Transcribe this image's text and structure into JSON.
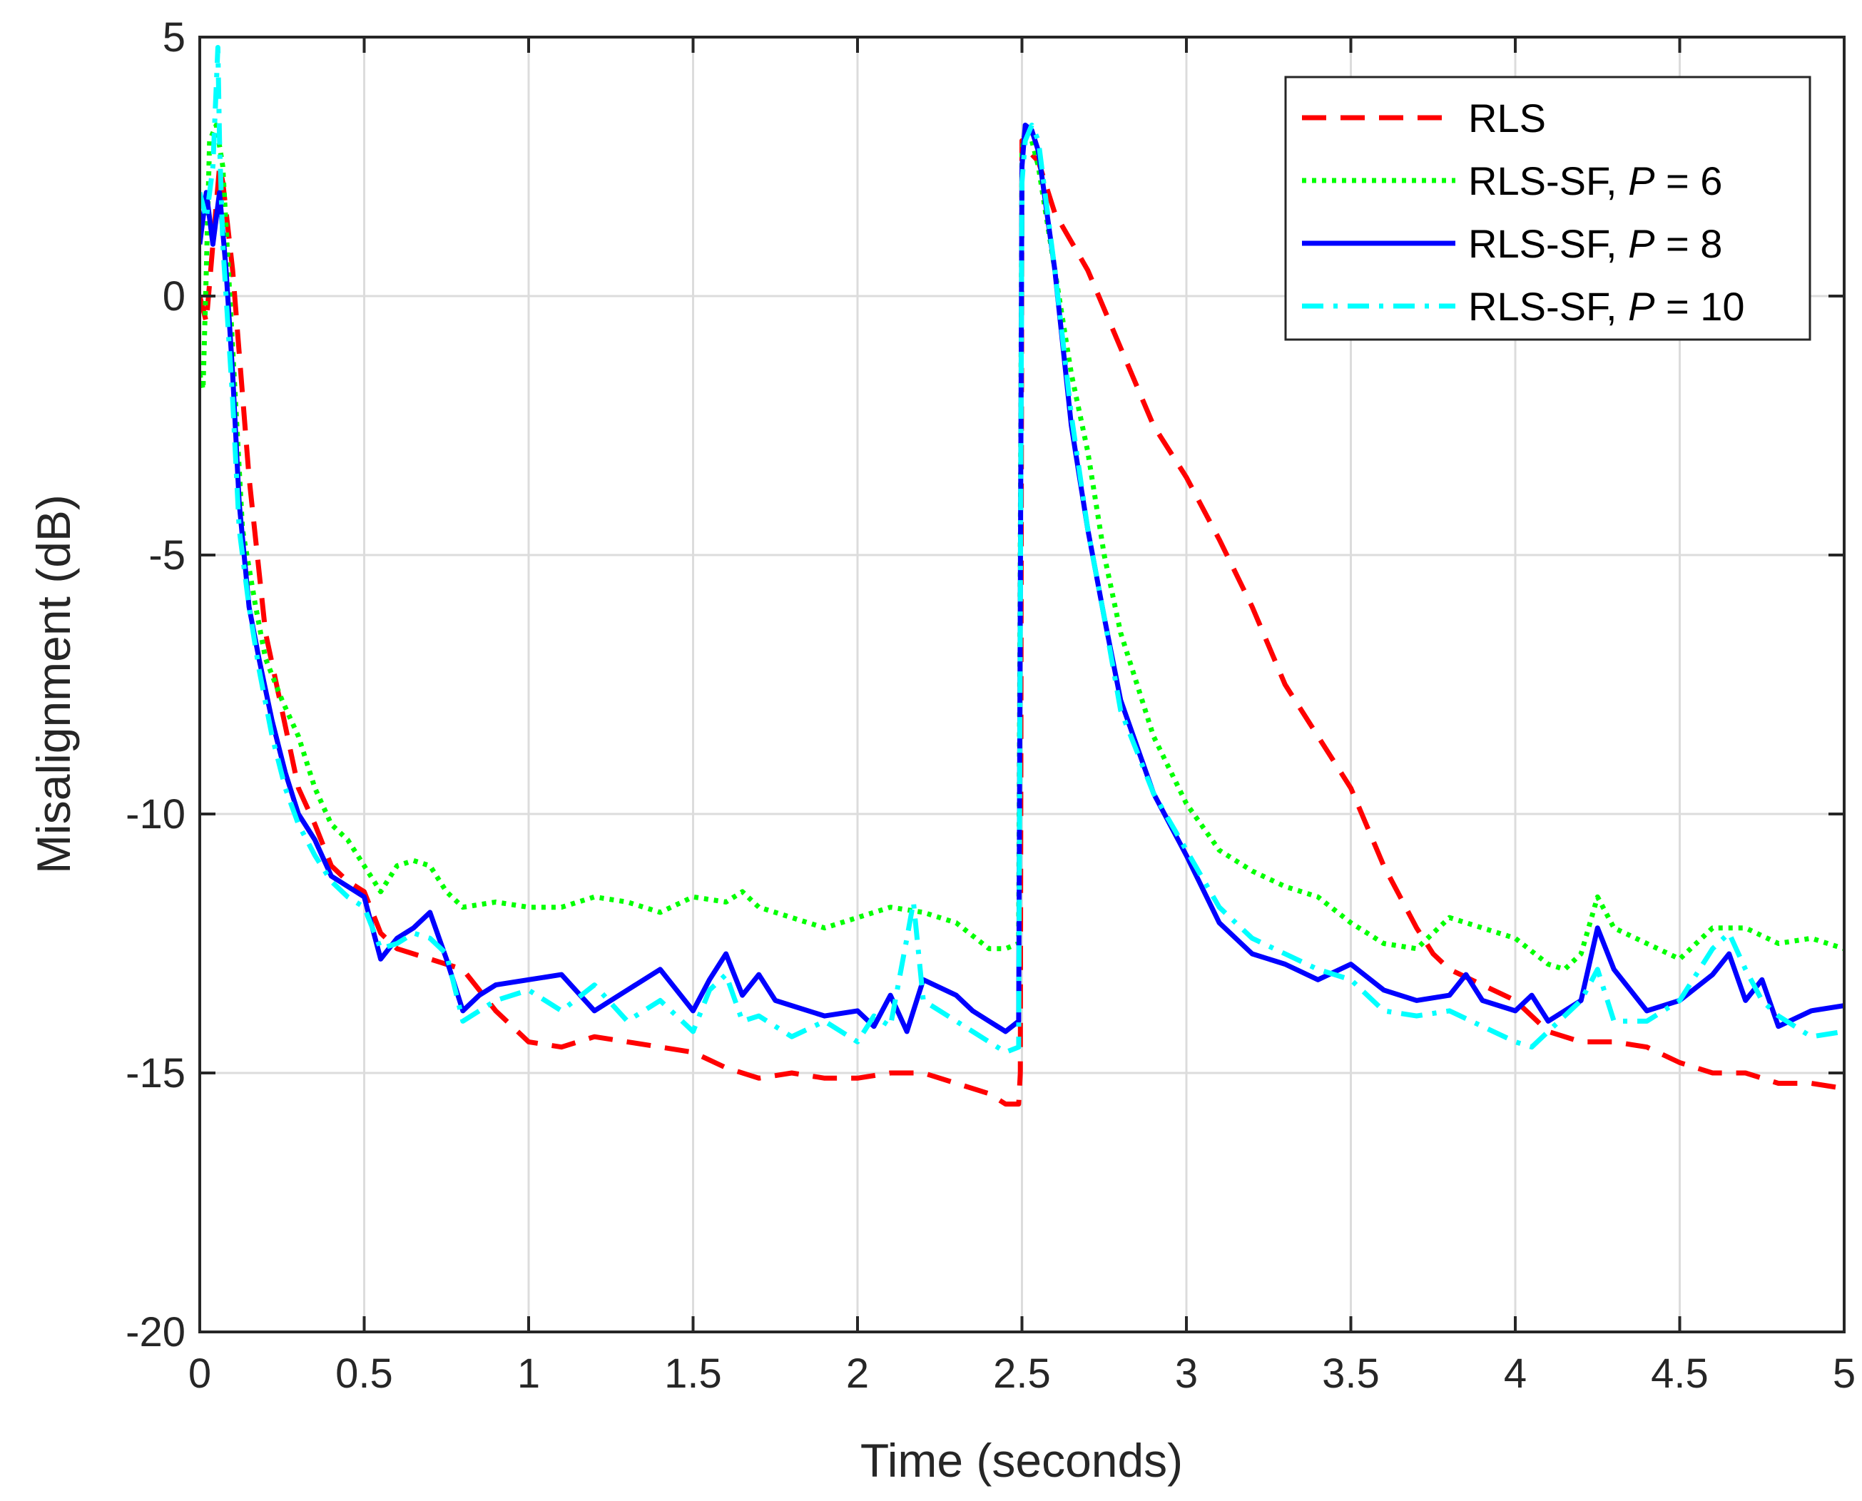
{
  "chart_data": {
    "type": "line",
    "title": "",
    "xlabel": "Time (seconds)",
    "ylabel": "Misalignment (dB)",
    "xlim": [
      0,
      5
    ],
    "ylim": [
      -20,
      5
    ],
    "xticks": [
      0,
      0.5,
      1,
      1.5,
      2,
      2.5,
      3,
      3.5,
      4,
      4.5,
      5
    ],
    "xtick_labels": [
      "0",
      "0.5",
      "1",
      "1.5",
      "2",
      "2.5",
      "3",
      "3.5",
      "4",
      "4.5",
      "5"
    ],
    "yticks": [
      5,
      0,
      -5,
      -10,
      -15,
      -20
    ],
    "ytick_labels": [
      "5",
      "0",
      "-5",
      "-10",
      "-15",
      "-20"
    ],
    "grid": true,
    "legend_position": "top-right",
    "series": [
      {
        "name": "RLS",
        "legend_main": "RLS",
        "legend_var": "",
        "legend_tail": "",
        "color": "#ff0000",
        "style": "dashed",
        "x": [
          0,
          0.02,
          0.04,
          0.06,
          0.07,
          0.1,
          0.15,
          0.2,
          0.25,
          0.3,
          0.35,
          0.4,
          0.45,
          0.5,
          0.55,
          0.6,
          0.7,
          0.8,
          0.9,
          1.0,
          1.1,
          1.2,
          1.3,
          1.4,
          1.5,
          1.6,
          1.7,
          1.8,
          1.9,
          2.0,
          2.1,
          2.2,
          2.3,
          2.4,
          2.45,
          2.49,
          2.495,
          2.5,
          2.505,
          2.52,
          2.55,
          2.6,
          2.7,
          2.8,
          2.9,
          3.0,
          3.1,
          3.2,
          3.3,
          3.4,
          3.5,
          3.6,
          3.7,
          3.75,
          3.8,
          3.9,
          4.0,
          4.1,
          4.2,
          4.3,
          4.4,
          4.5,
          4.6,
          4.7,
          4.8,
          4.9,
          5.0
        ],
        "y": [
          0,
          -0.5,
          1.0,
          2.5,
          2.2,
          0.5,
          -3.5,
          -6.5,
          -8.0,
          -9.5,
          -10.2,
          -11.0,
          -11.3,
          -11.5,
          -12.3,
          -12.6,
          -12.8,
          -13.0,
          -13.8,
          -14.4,
          -14.5,
          -14.3,
          -14.4,
          -14.5,
          -14.6,
          -14.9,
          -15.1,
          -15.0,
          -15.1,
          -15.1,
          -15.0,
          -15.0,
          -15.2,
          -15.4,
          -15.6,
          -15.6,
          -15.0,
          3.0,
          3.0,
          2.8,
          2.6,
          1.6,
          0.5,
          -1.0,
          -2.5,
          -3.5,
          -4.7,
          -6.0,
          -7.5,
          -8.5,
          -9.5,
          -11.0,
          -12.2,
          -12.7,
          -13.0,
          -13.3,
          -13.6,
          -14.2,
          -14.4,
          -14.4,
          -14.5,
          -14.8,
          -15.0,
          -15.0,
          -15.2,
          -15.2,
          -15.3
        ]
      },
      {
        "name": "RLS-SF, P = 6",
        "legend_main": "RLS-SF, ",
        "legend_var": "P",
        "legend_tail": " = 6",
        "color": "#00ff00",
        "style": "dotted",
        "x": [
          0,
          0.01,
          0.02,
          0.03,
          0.05,
          0.07,
          0.1,
          0.13,
          0.17,
          0.2,
          0.25,
          0.3,
          0.35,
          0.4,
          0.45,
          0.5,
          0.55,
          0.6,
          0.65,
          0.7,
          0.75,
          0.8,
          0.9,
          1.0,
          1.1,
          1.2,
          1.3,
          1.4,
          1.5,
          1.6,
          1.65,
          1.7,
          1.8,
          1.9,
          2.0,
          2.1,
          2.2,
          2.3,
          2.4,
          2.45,
          2.49,
          2.5,
          2.51,
          2.53,
          2.55,
          2.6,
          2.65,
          2.7,
          2.75,
          2.8,
          2.85,
          2.9,
          3.0,
          3.1,
          3.2,
          3.3,
          3.4,
          3.5,
          3.6,
          3.7,
          3.8,
          3.9,
          4.0,
          4.1,
          4.15,
          4.2,
          4.25,
          4.3,
          4.4,
          4.5,
          4.6,
          4.7,
          4.8,
          4.9,
          5.0
        ],
        "y": [
          -1.5,
          -1.8,
          0.5,
          3.0,
          3.3,
          2.5,
          -1.0,
          -4.5,
          -6.0,
          -7.0,
          -7.8,
          -8.5,
          -9.5,
          -10.2,
          -10.5,
          -11.0,
          -11.5,
          -11.0,
          -10.9,
          -11.0,
          -11.5,
          -11.8,
          -11.7,
          -11.8,
          -11.8,
          -11.6,
          -11.7,
          -11.9,
          -11.6,
          -11.7,
          -11.5,
          -11.8,
          -12.0,
          -12.2,
          -12.0,
          -11.8,
          -11.9,
          -12.1,
          -12.6,
          -12.6,
          -12.5,
          2.8,
          3.2,
          3.0,
          2.5,
          0.5,
          -1.5,
          -3.0,
          -5.0,
          -6.5,
          -7.5,
          -8.5,
          -9.8,
          -10.7,
          -11.1,
          -11.4,
          -11.6,
          -12.1,
          -12.5,
          -12.6,
          -12.0,
          -12.2,
          -12.4,
          -12.9,
          -13.0,
          -12.7,
          -11.6,
          -12.2,
          -12.5,
          -12.8,
          -12.2,
          -12.2,
          -12.5,
          -12.4,
          -12.6
        ]
      },
      {
        "name": "RLS-SF, P = 8",
        "legend_main": "RLS-SF, ",
        "legend_var": "P",
        "legend_tail": " = 8",
        "color": "#0000ff",
        "style": "solid",
        "x": [
          0,
          0.02,
          0.04,
          0.06,
          0.08,
          0.1,
          0.12,
          0.15,
          0.18,
          0.22,
          0.26,
          0.3,
          0.35,
          0.4,
          0.45,
          0.5,
          0.55,
          0.6,
          0.65,
          0.7,
          0.75,
          0.8,
          0.85,
          0.9,
          1.0,
          1.1,
          1.2,
          1.3,
          1.4,
          1.5,
          1.55,
          1.6,
          1.65,
          1.7,
          1.75,
          1.8,
          1.9,
          2.0,
          2.05,
          2.1,
          2.15,
          2.2,
          2.3,
          2.35,
          2.4,
          2.45,
          2.49,
          2.5,
          2.51,
          2.53,
          2.55,
          2.6,
          2.65,
          2.7,
          2.75,
          2.8,
          2.9,
          3.0,
          3.1,
          3.2,
          3.3,
          3.4,
          3.5,
          3.6,
          3.7,
          3.8,
          3.85,
          3.9,
          4.0,
          4.05,
          4.1,
          4.2,
          4.25,
          4.3,
          4.4,
          4.5,
          4.6,
          4.65,
          4.7,
          4.75,
          4.8,
          4.9,
          5.0
        ],
        "y": [
          1.0,
          2.0,
          1.0,
          2.0,
          0.5,
          -1.5,
          -4.0,
          -6.0,
          -7.0,
          -8.2,
          -9.2,
          -10.0,
          -10.5,
          -11.2,
          -11.4,
          -11.6,
          -12.8,
          -12.4,
          -12.2,
          -11.9,
          -12.8,
          -13.8,
          -13.5,
          -13.3,
          -13.2,
          -13.1,
          -13.8,
          -13.4,
          -13.0,
          -13.8,
          -13.2,
          -12.7,
          -13.5,
          -13.1,
          -13.6,
          -13.7,
          -13.9,
          -13.8,
          -14.1,
          -13.5,
          -14.2,
          -13.2,
          -13.5,
          -13.8,
          -14.0,
          -14.2,
          -14.0,
          2.5,
          3.3,
          3.2,
          2.8,
          0.5,
          -2.5,
          -4.5,
          -6.2,
          -7.8,
          -9.6,
          -10.8,
          -12.1,
          -12.7,
          -12.9,
          -13.2,
          -12.9,
          -13.4,
          -13.6,
          -13.5,
          -13.1,
          -13.6,
          -13.8,
          -13.5,
          -14.0,
          -13.6,
          -12.2,
          -13.0,
          -13.8,
          -13.6,
          -13.1,
          -12.7,
          -13.6,
          -13.2,
          -14.1,
          -13.8,
          -13.7
        ]
      },
      {
        "name": "RLS-SF, P = 10",
        "legend_main": "RLS-SF, ",
        "legend_var": "P",
        "legend_tail": " = 10",
        "color": "#00ffff",
        "style": "dashdot",
        "x": [
          0,
          0.02,
          0.04,
          0.055,
          0.06,
          0.07,
          0.08,
          0.1,
          0.12,
          0.15,
          0.18,
          0.22,
          0.26,
          0.3,
          0.35,
          0.4,
          0.45,
          0.5,
          0.55,
          0.6,
          0.65,
          0.7,
          0.75,
          0.8,
          0.85,
          0.9,
          1.0,
          1.1,
          1.2,
          1.3,
          1.4,
          1.5,
          1.55,
          1.6,
          1.65,
          1.7,
          1.8,
          1.9,
          2.0,
          2.05,
          2.1,
          2.15,
          2.17,
          2.2,
          2.3,
          2.35,
          2.4,
          2.45,
          2.49,
          2.5,
          2.51,
          2.53,
          2.55,
          2.6,
          2.65,
          2.7,
          2.75,
          2.8,
          2.9,
          3.0,
          3.1,
          3.2,
          3.3,
          3.4,
          3.5,
          3.6,
          3.7,
          3.8,
          3.9,
          4.0,
          4.05,
          4.1,
          4.2,
          4.25,
          4.3,
          4.4,
          4.5,
          4.6,
          4.65,
          4.7,
          4.75,
          4.8,
          4.9,
          5.0
        ],
        "y": [
          2.0,
          1.5,
          2.5,
          4.8,
          3.0,
          1.0,
          0.0,
          -2.0,
          -4.5,
          -6.0,
          -7.2,
          -8.5,
          -9.5,
          -10.2,
          -10.8,
          -11.3,
          -11.6,
          -11.8,
          -12.6,
          -12.5,
          -12.3,
          -12.4,
          -12.7,
          -14.0,
          -13.8,
          -13.6,
          -13.4,
          -13.8,
          -13.3,
          -14.0,
          -13.6,
          -14.2,
          -13.4,
          -13.1,
          -14.0,
          -13.9,
          -14.3,
          -14.0,
          -14.4,
          -13.9,
          -14.1,
          -12.4,
          -11.7,
          -13.6,
          -14.0,
          -14.2,
          -14.4,
          -14.6,
          -14.5,
          2.2,
          3.0,
          3.3,
          3.0,
          0.5,
          -2.3,
          -4.5,
          -6.2,
          -8.0,
          -9.6,
          -10.7,
          -11.8,
          -12.4,
          -12.7,
          -13.0,
          -13.2,
          -13.8,
          -13.9,
          -13.8,
          -14.1,
          -14.4,
          -14.5,
          -14.2,
          -13.6,
          -13.0,
          -14.0,
          -14.0,
          -13.6,
          -12.6,
          -12.3,
          -13.0,
          -13.6,
          -13.9,
          -14.3,
          -14.2
        ]
      }
    ]
  }
}
